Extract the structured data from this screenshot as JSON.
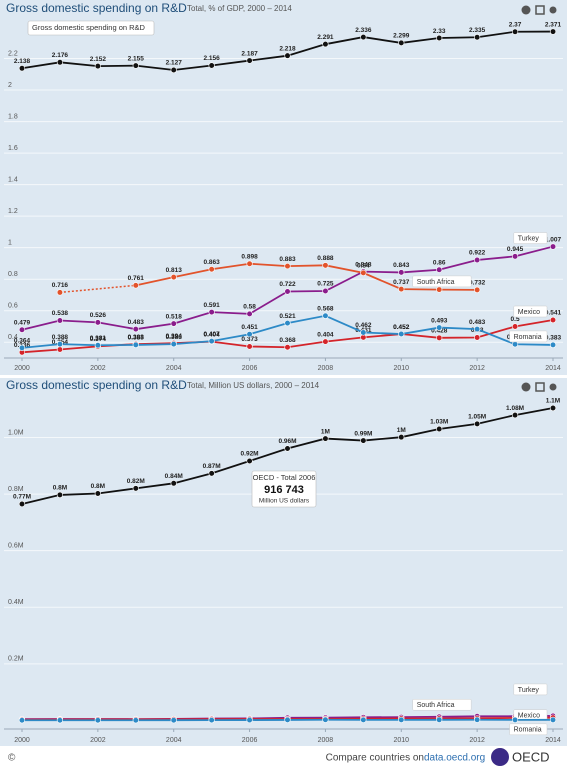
{
  "chart_data": [
    {
      "type": "line",
      "title": "Gross domestic spending on R&D",
      "subtitle": "Total, % of GDP, 2000 – 2014",
      "x": [
        2000,
        2001,
        2002,
        2003,
        2004,
        2005,
        2006,
        2007,
        2008,
        2009,
        2010,
        2011,
        2012,
        2013,
        2014
      ],
      "xlim": [
        2000,
        2014
      ],
      "xticks": [
        2000,
        2002,
        2004,
        2006,
        2008,
        2010,
        2012,
        2014
      ],
      "ylim": [
        0.3,
        2.4
      ],
      "yticks": [
        0.4,
        0.6,
        0.8,
        1.0,
        1.2,
        1.4,
        1.6,
        1.8,
        2.0,
        2.2
      ],
      "grid": true,
      "data_labels": true,
      "tooltip": {
        "title": "Gross domestic spending on R&D"
      },
      "series": [
        {
          "name": "OECD",
          "color": "#111111",
          "values": [
            2.138,
            2.176,
            2.152,
            2.155,
            2.127,
            2.156,
            2.187,
            2.218,
            2.291,
            2.336,
            2.299,
            2.33,
            2.335,
            2.37,
            2.371
          ]
        },
        {
          "name": "Turkey",
          "color": "#8a1d8c",
          "values": [
            0.479,
            0.538,
            0.526,
            0.483,
            0.518,
            0.591,
            0.58,
            0.722,
            0.725,
            0.848,
            0.843,
            0.86,
            0.922,
            0.945,
            1.007
          ]
        },
        {
          "name": "South Africa",
          "color": "#e2532b",
          "values": [
            null,
            0.716,
            null,
            0.761,
            0.813,
            0.863,
            0.898,
            0.883,
            0.888,
            0.84,
            0.737,
            0.734,
            0.732,
            null,
            null
          ]
        },
        {
          "name": "Mexico",
          "color": "#d4242a",
          "values": [
            0.336,
            0.354,
            0.374,
            0.388,
            0.394,
            0.404,
            0.373,
            0.368,
            0.404,
            0.431,
            0.452,
            0.428,
            0.43,
            0.5,
            0.541
          ]
        },
        {
          "name": "Romania",
          "color": "#2d8ac7",
          "values": [
            0.364,
            0.388,
            0.381,
            0.383,
            0.388,
            0.407,
            0.451,
            0.521,
            0.568,
            0.462,
            0.452,
            0.493,
            0.483,
            0.387,
            0.383
          ]
        }
      ]
    },
    {
      "type": "line",
      "title": "Gross domestic spending on R&D",
      "subtitle": "Total, Million US dollars, 2000 – 2014",
      "x": [
        2000,
        2001,
        2002,
        2003,
        2004,
        2005,
        2006,
        2007,
        2008,
        2009,
        2010,
        2011,
        2012,
        2013,
        2014
      ],
      "xlim": [
        2000,
        2014
      ],
      "xticks": [
        2000,
        2002,
        2004,
        2006,
        2008,
        2010,
        2012,
        2014
      ],
      "ylim": [
        -30000,
        1150000
      ],
      "yticks": [
        {
          "value": 200000,
          "label": "0.2M"
        },
        {
          "value": 400000,
          "label": "0.4M"
        },
        {
          "value": 600000,
          "label": "0.6M"
        },
        {
          "value": 800000,
          "label": "0.8M"
        },
        {
          "value": 1000000,
          "label": "1.0M"
        }
      ],
      "grid": true,
      "tooltip": {
        "title": "OECD - Total 2006",
        "value": "916 743",
        "unit": "Million US dollars"
      },
      "series": [
        {
          "name": "OECD",
          "color": "#111111",
          "values": [
            765000,
            797000,
            802000,
            820000,
            838000,
            873000,
            916743,
            961000,
            996000,
            989000,
            1001000,
            1030000,
            1048000,
            1079000,
            1104000
          ],
          "value_labels": [
            "0.77M",
            "0.8M",
            "0.8M",
            "0.82M",
            "0.84M",
            "0.87M",
            "0.92M",
            "0.96M",
            "1M",
            "0.99M",
            "1M",
            "1.03M",
            "1.05M",
            "1.08M",
            "1.1M"
          ]
        },
        {
          "name": "Turkey",
          "color": "#8a1d8c",
          "values": [
            4800,
            5300,
            5200,
            5000,
            5600,
            6900,
            7400,
            9600,
            10300,
            11400,
            11900,
            13200,
            14900,
            15200,
            16200
          ]
        },
        {
          "name": "South Africa",
          "color": "#e2532b",
          "values": [
            null,
            2800,
            null,
            3200,
            3600,
            4100,
            4500,
            4700,
            4900,
            4700,
            4200,
            4300,
            4500,
            null,
            null
          ]
        },
        {
          "name": "Mexico",
          "color": "#d4242a",
          "values": [
            3200,
            3500,
            3800,
            4100,
            4400,
            4900,
            4800,
            5000,
            5900,
            6300,
            7100,
            7100,
            7800,
            9200,
            10000
          ]
        },
        {
          "name": "Romania",
          "color": "#2d8ac7",
          "values": [
            800,
            900,
            900,
            1000,
            1100,
            1300,
            1600,
            2100,
            2700,
            2300,
            2200,
            2500,
            2700,
            2300,
            2400
          ]
        }
      ]
    }
  ],
  "footer": {
    "copyright": "©",
    "text": "Compare countries on ",
    "link": "data.oecd.org",
    "brand": "OECD"
  }
}
